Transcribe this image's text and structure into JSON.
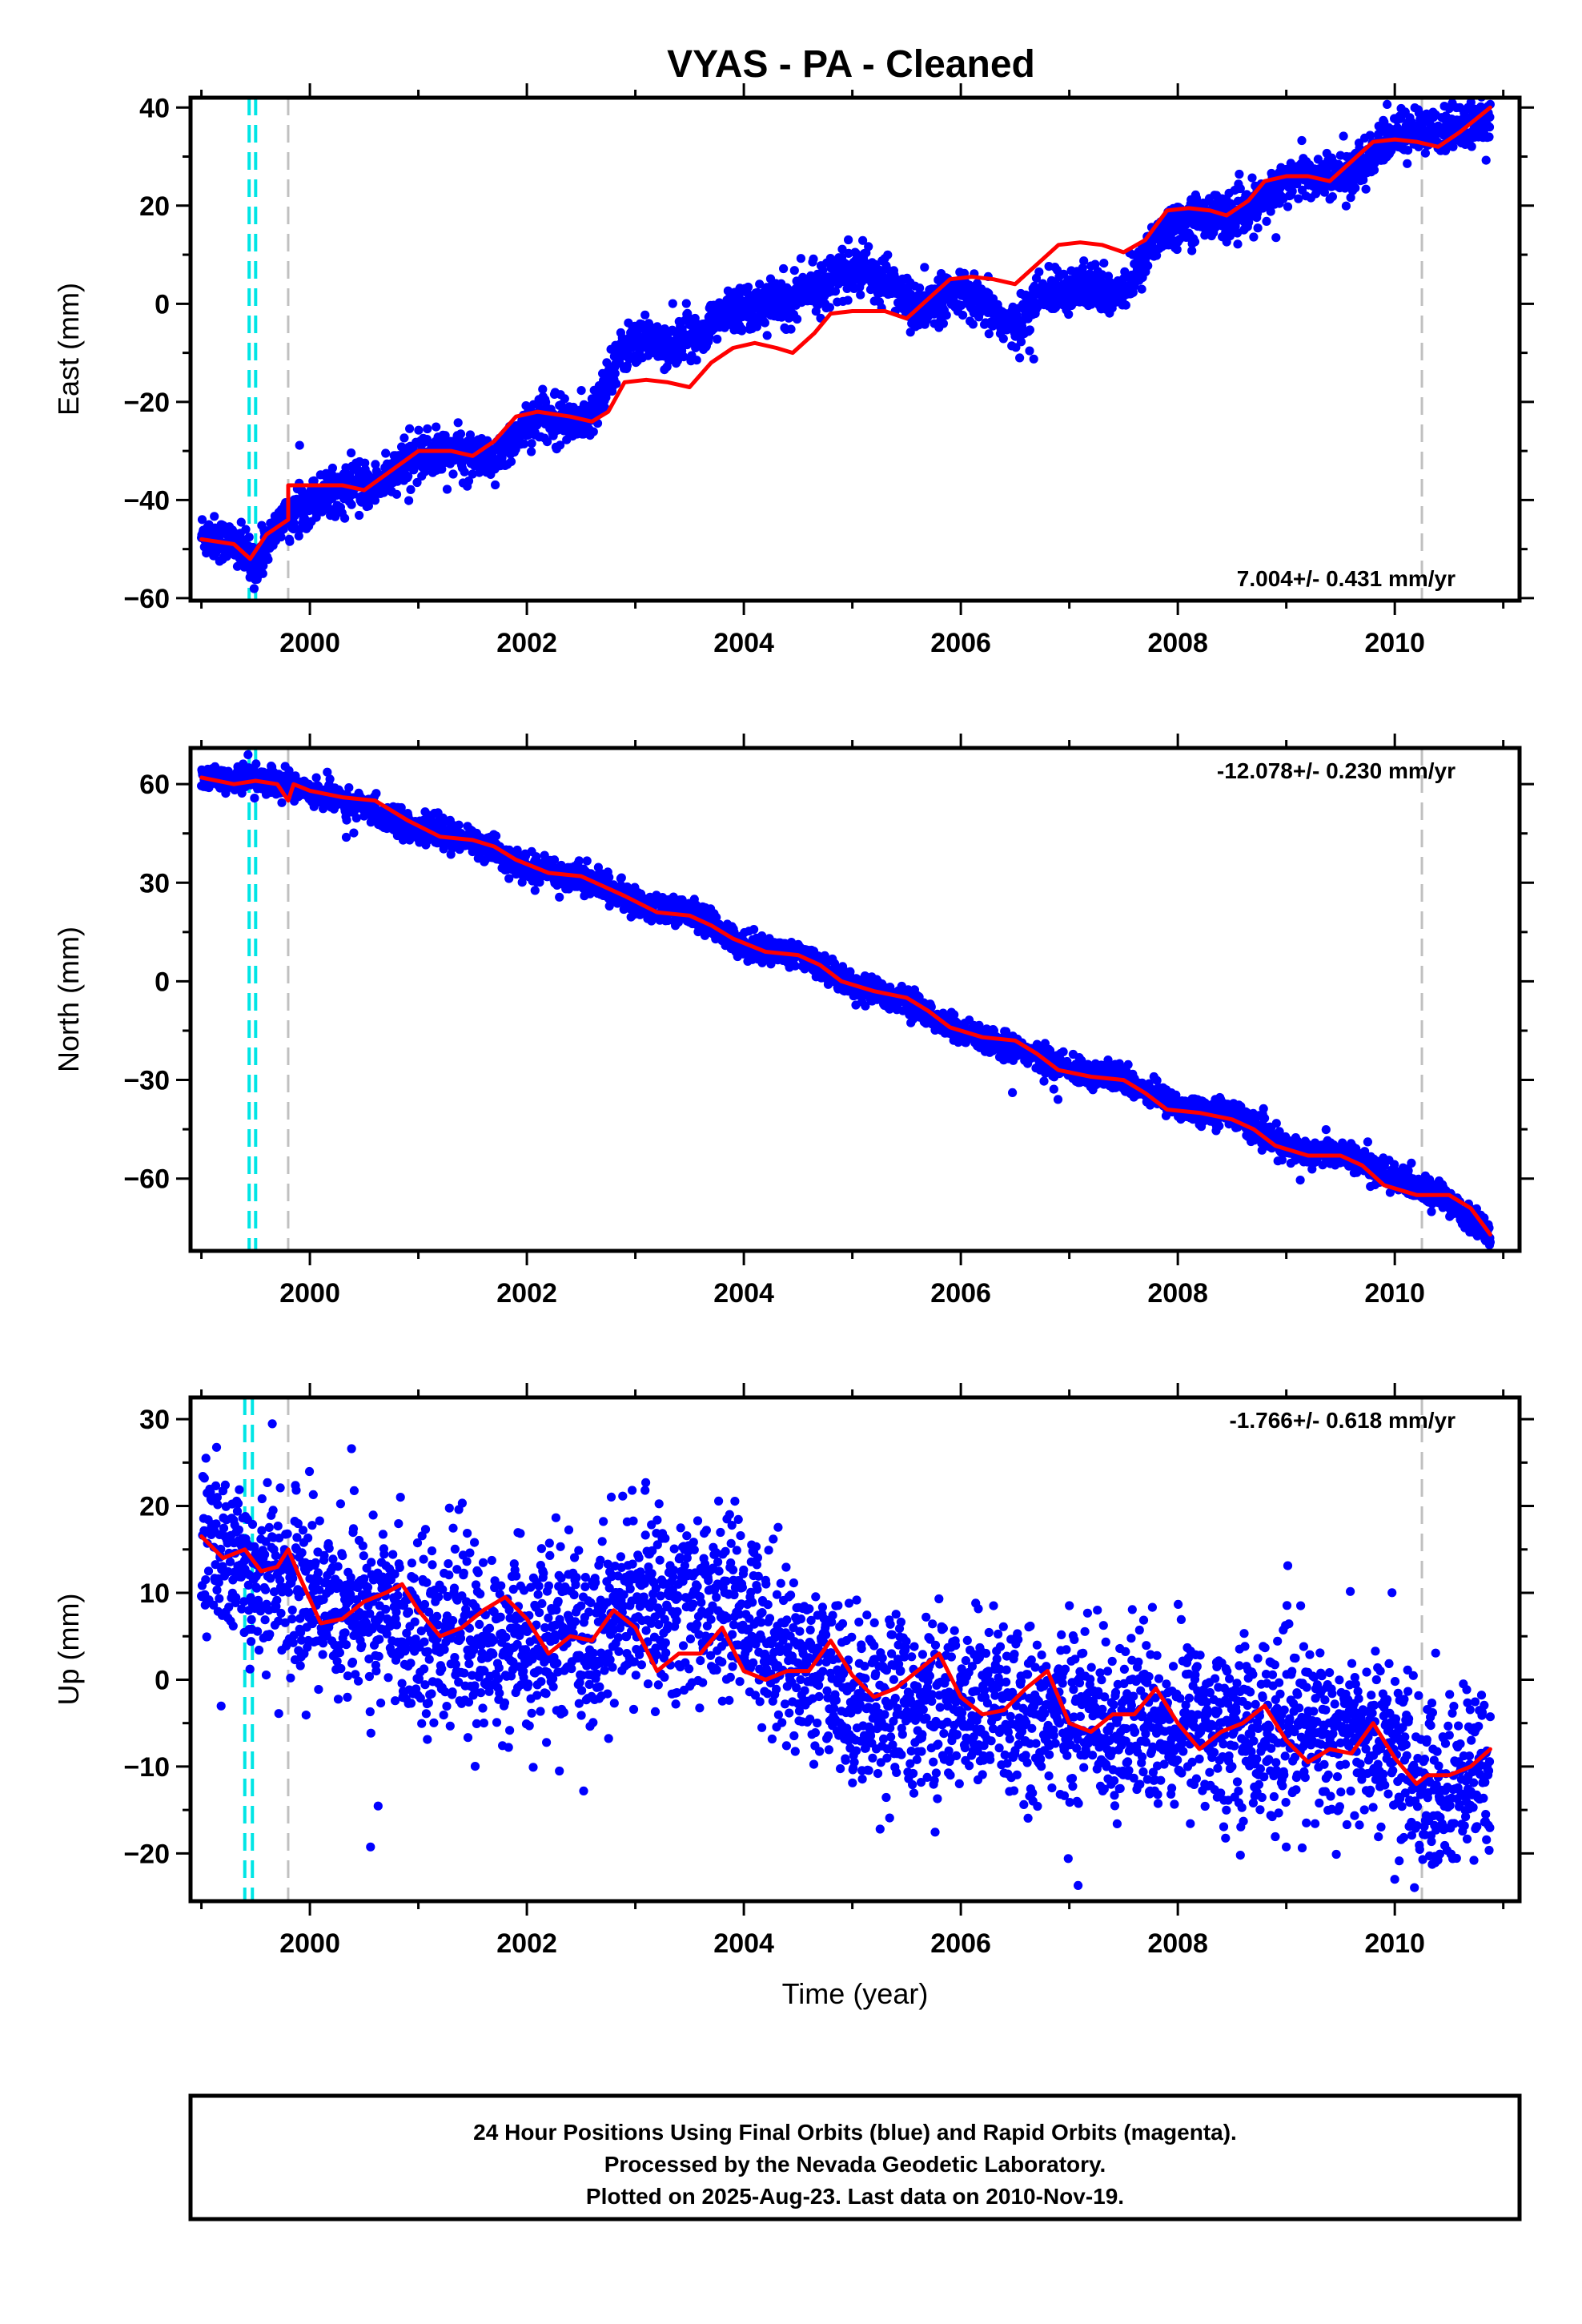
{
  "figure": {
    "title": "VYAS  - PA - Cleaned",
    "footer": [
      "24 Hour Positions Using Final Orbits (blue) and Rapid Orbits (magenta).",
      "Processed by the Nevada Geodetic Laboratory.",
      "Plotted on 2025-Aug-23. Last data on 2010-Nov-19."
    ],
    "colors": {
      "data_points": "#0000ff",
      "model_line": "#ff0000",
      "antenna_change_lines": "#00e5e5",
      "event_lines": "#c0c0c0",
      "frame": "#000000"
    }
  },
  "chart_data": [
    {
      "type": "scatter",
      "panel": "east",
      "ylabel": "East (mm)",
      "xlabel": "",
      "rate_annotation": "7.004+/- 0.431 mm/yr",
      "xlim": [
        1998.9,
        2011.15
      ],
      "ylim": [
        -60.5,
        42
      ],
      "xticks": [
        2000,
        2002,
        2004,
        2006,
        2008,
        2010
      ],
      "yticks": [
        -60,
        -40,
        -20,
        0,
        20,
        40
      ],
      "ytick_labels": [
        "−60",
        "−40",
        "−20",
        "0",
        "20",
        "40"
      ],
      "scatter_spread": 2.2,
      "series": [
        {
          "kind": "data_trend",
          "x": [
            1999.0,
            1999.3,
            1999.5,
            1999.7,
            2000.0,
            2000.3,
            2000.6,
            2001.0,
            2001.4,
            2001.7,
            2002.0,
            2002.3,
            2002.55,
            2002.7,
            2002.8,
            2003.0,
            2003.3,
            2003.6,
            2003.9,
            2004.2,
            2004.4,
            2004.6,
            2004.8,
            2005.0,
            2005.3,
            2005.6,
            2005.8,
            2006.0,
            2006.3,
            2006.5,
            2006.7,
            2006.9,
            2007.2,
            2007.4,
            2007.6,
            2007.8,
            2008.0,
            2008.3,
            2008.6,
            2008.8,
            2009.0,
            2009.3,
            2009.5,
            2009.7,
            2010.0,
            2010.3,
            2010.6,
            2010.88
          ],
          "y": [
            -47,
            -49,
            -53,
            -45,
            -40,
            -38,
            -37,
            -31,
            -30,
            -33,
            -24,
            -23,
            -25,
            -18,
            -12,
            -7,
            -8,
            -6,
            -1,
            0,
            0,
            3,
            5,
            7,
            5,
            -1,
            0,
            2,
            -2,
            -5,
            1,
            3,
            3,
            2,
            5,
            14,
            17,
            18,
            18,
            21,
            26,
            26,
            26,
            28,
            35,
            35,
            36,
            37
          ]
        },
        {
          "kind": "model",
          "x": [
            1999.0,
            1999.3,
            1999.45,
            1999.6,
            1999.8,
            1999.8,
            2000.0,
            2000.3,
            2000.5,
            2000.75,
            2001.0,
            2001.3,
            2001.5,
            2001.7,
            2001.9,
            2002.1,
            2002.4,
            2002.6,
            2002.75,
            2002.9,
            2003.1,
            2003.3,
            2003.5,
            2003.7,
            2003.9,
            2004.1,
            2004.3,
            2004.45,
            2004.65,
            2004.8,
            2005.0,
            2005.3,
            2005.5,
            2005.7,
            2005.9,
            2006.1,
            2006.3,
            2006.5,
            2006.7,
            2006.9,
            2007.1,
            2007.3,
            2007.5,
            2007.7,
            2007.9,
            2008.1,
            2008.3,
            2008.45,
            2008.65,
            2008.8,
            2009.0,
            2009.2,
            2009.4,
            2009.6,
            2009.8,
            2010.0,
            2010.2,
            2010.4,
            2010.6,
            2010.88
          ],
          "y": [
            -48,
            -49,
            -52,
            -47,
            -44,
            -37,
            -37,
            -37,
            -38,
            -34,
            -30,
            -30,
            -31,
            -28,
            -23,
            -22,
            -23,
            -24,
            -22,
            -16,
            -15.5,
            -16,
            -17,
            -12,
            -9,
            -8,
            -9,
            -10,
            -6,
            -2,
            -1.5,
            -1.5,
            -3,
            1,
            5,
            5.5,
            5,
            4,
            8,
            12,
            12.5,
            12,
            10.5,
            13,
            19,
            19.5,
            19,
            18,
            21,
            25,
            26,
            26,
            25,
            29,
            33,
            33.5,
            33,
            32,
            35,
            40
          ]
        }
      ],
      "vlines": [
        {
          "x": 1999.44,
          "color": "#00e5e5",
          "dash": "long"
        },
        {
          "x": 1999.5,
          "color": "#00e5e5",
          "dash": "long"
        },
        {
          "x": 1999.8,
          "color": "#c0c0c0",
          "dash": "long"
        },
        {
          "x": 2010.25,
          "color": "#c0c0c0",
          "dash": "long"
        }
      ]
    },
    {
      "type": "scatter",
      "panel": "north",
      "ylabel": "North (mm)",
      "xlabel": "",
      "rate_annotation": "-12.078+/- 0.230 mm/yr",
      "xlim": [
        1998.9,
        2011.15
      ],
      "ylim": [
        -82,
        71
      ],
      "xticks": [
        2000,
        2002,
        2004,
        2006,
        2008,
        2010
      ],
      "yticks": [
        -60,
        -30,
        0,
        30,
        60
      ],
      "ytick_labels": [
        "−60",
        "−30",
        "0",
        "30",
        "60"
      ],
      "scatter_spread": 2.0,
      "series": [
        {
          "kind": "data_trend",
          "x": [
            1999.0,
            1999.5,
            2000.0,
            2000.5,
            2001.0,
            2001.5,
            2002.0,
            2002.5,
            2003.0,
            2003.5,
            2004.0,
            2004.5,
            2005.0,
            2005.5,
            2006.0,
            2006.5,
            2007.0,
            2007.5,
            2008.0,
            2008.5,
            2009.0,
            2009.5,
            2010.0,
            2010.4,
            2010.88
          ],
          "y": [
            62,
            62,
            58,
            53,
            46,
            43,
            34,
            32,
            24,
            21,
            11,
            8,
            -1,
            -6,
            -16,
            -20,
            -27,
            -30,
            -38,
            -40,
            -51,
            -52,
            -60,
            -65,
            -77
          ]
        },
        {
          "kind": "model",
          "x": [
            1999.0,
            1999.3,
            1999.5,
            1999.7,
            1999.8,
            1999.85,
            2000.0,
            2000.3,
            2000.6,
            2000.9,
            2001.2,
            2001.5,
            2001.7,
            2001.9,
            2002.2,
            2002.5,
            2002.7,
            2002.9,
            2003.2,
            2003.5,
            2003.7,
            2003.9,
            2004.2,
            2004.5,
            2004.7,
            2004.9,
            2005.2,
            2005.5,
            2005.7,
            2005.9,
            2006.2,
            2006.5,
            2006.7,
            2006.9,
            2007.2,
            2007.5,
            2007.7,
            2007.9,
            2008.2,
            2008.5,
            2008.7,
            2008.9,
            2009.2,
            2009.5,
            2009.7,
            2009.9,
            2010.2,
            2010.5,
            2010.7,
            2010.88
          ],
          "y": [
            62,
            60,
            61,
            60,
            55,
            60,
            58,
            56,
            55,
            49,
            44,
            43,
            41,
            37,
            33,
            32,
            29,
            26,
            21,
            20,
            17,
            13,
            9,
            8,
            5,
            0,
            -3,
            -5,
            -9,
            -14,
            -17,
            -18,
            -22,
            -27,
            -29,
            -30,
            -34,
            -39,
            -40,
            -42,
            -45,
            -50,
            -53,
            -53,
            -56,
            -62,
            -65,
            -65,
            -69,
            -77
          ]
        }
      ],
      "vlines": [
        {
          "x": 1999.44,
          "color": "#00e5e5",
          "dash": "long"
        },
        {
          "x": 1999.5,
          "color": "#00e5e5",
          "dash": "long"
        },
        {
          "x": 1999.8,
          "color": "#c0c0c0",
          "dash": "long"
        },
        {
          "x": 2010.25,
          "color": "#c0c0c0",
          "dash": "long"
        }
      ]
    },
    {
      "type": "scatter",
      "panel": "up",
      "ylabel": "Up (mm)",
      "xlabel": "Time (year)",
      "rate_annotation": "-1.766+/- 0.618 mm/yr",
      "xlim": [
        1998.9,
        2011.15
      ],
      "ylim": [
        -25.5,
        32.5
      ],
      "xticks": [
        2000,
        2002,
        2004,
        2006,
        2008,
        2010
      ],
      "yticks": [
        -20,
        -10,
        0,
        10,
        20,
        30
      ],
      "ytick_labels": [
        "−20",
        "−10",
        "0",
        "10",
        "20",
        "30"
      ],
      "scatter_spread": 5.0,
      "series": [
        {
          "kind": "data_trend",
          "x": [
            1999.0,
            1999.5,
            2000.0,
            2000.5,
            2001.0,
            2001.5,
            2002.0,
            2002.5,
            2003.0,
            2003.5,
            2004.0,
            2004.5,
            2005.0,
            2005.5,
            2006.0,
            2006.5,
            2007.0,
            2007.5,
            2008.0,
            2008.5,
            2009.0,
            2009.5,
            2010.0,
            2010.3,
            2010.88
          ],
          "y": [
            15,
            13,
            10,
            8,
            6,
            4,
            4,
            5,
            9,
            9,
            8,
            2,
            -2,
            -3,
            -3,
            -4,
            -4,
            -5,
            -5,
            -5,
            -6,
            -6,
            -8,
            -14,
            -10
          ]
        },
        {
          "kind": "model",
          "x": [
            1999.0,
            1999.2,
            1999.4,
            1999.55,
            1999.7,
            1999.8,
            1999.9,
            2000.1,
            2000.3,
            2000.5,
            2000.7,
            2000.85,
            2001.0,
            2001.2,
            2001.4,
            2001.6,
            2001.8,
            2002.0,
            2002.2,
            2002.4,
            2002.6,
            2002.8,
            2003.0,
            2003.2,
            2003.4,
            2003.6,
            2003.8,
            2004.0,
            2004.2,
            2004.4,
            2004.6,
            2004.8,
            2005.0,
            2005.2,
            2005.4,
            2005.6,
            2005.8,
            2006.0,
            2006.2,
            2006.4,
            2006.6,
            2006.8,
            2007.0,
            2007.2,
            2007.4,
            2007.6,
            2007.8,
            2008.0,
            2008.2,
            2008.4,
            2008.6,
            2008.8,
            2009.0,
            2009.2,
            2009.4,
            2009.6,
            2009.8,
            2010.0,
            2010.2,
            2010.3,
            2010.5,
            2010.7,
            2010.88
          ],
          "y": [
            16.5,
            14,
            15,
            12.5,
            13,
            15,
            12,
            6.5,
            7,
            9,
            10,
            11,
            8,
            5,
            6,
            8,
            9.5,
            7,
            3,
            5,
            4.5,
            8,
            6,
            1,
            3,
            3,
            6,
            1,
            0,
            1,
            1,
            4.5,
            0.5,
            -2,
            -1,
            1,
            3,
            -2,
            -4,
            -3.5,
            -1,
            1,
            -5,
            -6,
            -4,
            -4,
            -1,
            -5,
            -8,
            -6,
            -5,
            -3,
            -7,
            -9.5,
            -8,
            -8.5,
            -5,
            -9,
            -12,
            -11,
            -11,
            -10,
            -8
          ]
        }
      ],
      "vlines": [
        {
          "x": 1999.4,
          "color": "#00e5e5",
          "dash": "long"
        },
        {
          "x": 1999.47,
          "color": "#00e5e5",
          "dash": "long"
        },
        {
          "x": 1999.8,
          "color": "#c0c0c0",
          "dash": "long"
        },
        {
          "x": 2010.25,
          "color": "#c0c0c0",
          "dash": "long"
        }
      ]
    }
  ]
}
